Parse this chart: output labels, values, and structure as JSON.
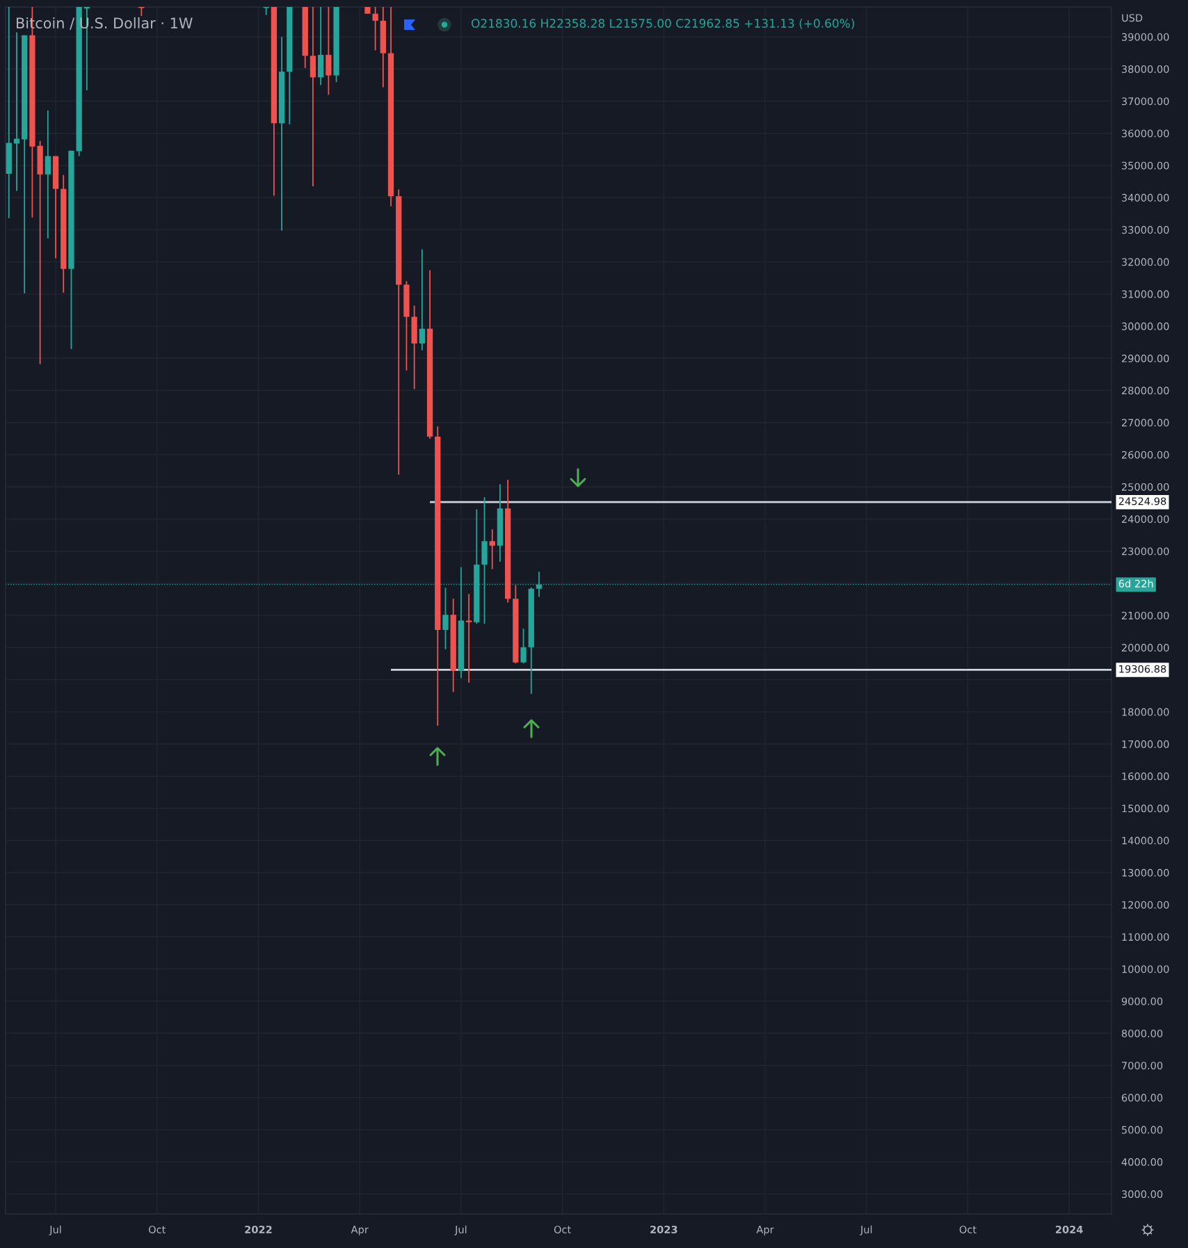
{
  "chart_data": {
    "type": "candlestick",
    "title": "Bitcoin / U.S. Dollar · 1W",
    "subtitle": "O21830.16 H22358.28 L21575.00 C21962.85 +131.13 (+0.60%)",
    "ylabel": "USD",
    "x": [
      "2021-05-24",
      "2021-05-31",
      "2021-06-07",
      "2021-06-14",
      "2021-06-21",
      "2021-06-28",
      "2021-07-05",
      "2021-07-12",
      "2021-07-19",
      "2021-07-26",
      "2021-08-02",
      "2021-09-20",
      "2022-01-10",
      "2022-01-17",
      "2022-01-24",
      "2022-01-31",
      "2022-02-14",
      "2022-02-21",
      "2022-02-28",
      "2022-03-07",
      "2022-03-14",
      "2022-04-11",
      "2022-04-18",
      "2022-04-25",
      "2022-05-02",
      "2022-05-09",
      "2022-05-16",
      "2022-05-23",
      "2022-05-30",
      "2022-06-06",
      "2022-06-13",
      "2022-06-20",
      "2022-06-27",
      "2022-07-04",
      "2022-07-11",
      "2022-07-18",
      "2022-07-25",
      "2022-08-01",
      "2022-08-08",
      "2022-08-15",
      "2022-08-22",
      "2022-08-29",
      "2022-09-05",
      "2022-09-12"
    ],
    "ohlc": [
      [
        34740,
        39930,
        33360,
        35700
      ],
      [
        35680,
        39140,
        34210,
        35830
      ],
      [
        35810,
        39050,
        31020,
        39050
      ],
      [
        39050,
        39930,
        33380,
        35590
      ],
      [
        35610,
        35760,
        28820,
        34720
      ],
      [
        34720,
        36710,
        32730,
        35290
      ],
      [
        35290,
        35290,
        32110,
        34270
      ],
      [
        34270,
        34700,
        31040,
        31780
      ],
      [
        31780,
        35460,
        29290,
        35460
      ],
      [
        35440,
        39930,
        35290,
        39930
      ],
      [
        39880,
        39930,
        37340,
        39930
      ],
      [
        39930,
        39930,
        39650,
        39930
      ],
      [
        39930,
        39930,
        39680,
        39930
      ],
      [
        39930,
        39930,
        34060,
        36310
      ],
      [
        36310,
        39000,
        32970,
        37920
      ],
      [
        37920,
        39930,
        36280,
        39930
      ],
      [
        39930,
        39930,
        38030,
        38410
      ],
      [
        38410,
        39930,
        34350,
        37740
      ],
      [
        37740,
        39930,
        37500,
        38440
      ],
      [
        38440,
        39930,
        37200,
        37800
      ],
      [
        37800,
        39930,
        37590,
        39930
      ],
      [
        39930,
        39930,
        39720,
        39720
      ],
      [
        39720,
        39930,
        38580,
        39500
      ],
      [
        39500,
        39930,
        37430,
        38490
      ],
      [
        38490,
        39930,
        33730,
        34040
      ],
      [
        34040,
        34250,
        25380,
        31290
      ],
      [
        31290,
        31400,
        28620,
        30290
      ],
      [
        30290,
        30640,
        28040,
        29460
      ],
      [
        29460,
        32390,
        29250,
        29920
      ],
      [
        29920,
        31740,
        26500,
        26560
      ],
      [
        26560,
        26880,
        17570,
        20550
      ],
      [
        20550,
        21860,
        19950,
        21020
      ],
      [
        21020,
        21520,
        18620,
        19280
      ],
      [
        19280,
        22500,
        19050,
        20840
      ],
      [
        20840,
        21670,
        18910,
        20790
      ],
      [
        20790,
        24300,
        20740,
        22580
      ],
      [
        22580,
        24680,
        20740,
        23310
      ],
      [
        23310,
        23680,
        22440,
        23170
      ],
      [
        23170,
        25080,
        22670,
        24330
      ],
      [
        24330,
        25220,
        21400,
        21520
      ],
      [
        21520,
        21940,
        19510,
        19540
      ],
      [
        19540,
        20590,
        19510,
        20010
      ],
      [
        20010,
        21870,
        18560,
        21830
      ],
      [
        21830.16,
        22358.28,
        21575.0,
        21962.85
      ]
    ],
    "colors": [
      "#26a69a",
      "#26a69a",
      "#26a69a",
      "#ef5350",
      "#ef5350",
      "#26a69a",
      "#ef5350",
      "#ef5350",
      "#26a69a",
      "#26a69a",
      "#26a69a",
      "#ef5350",
      "#26a69a",
      "#ef5350",
      "#26a69a",
      "#26a69a",
      "#ef5350",
      "#ef5350",
      "#26a69a",
      "#ef5350",
      "#26a69a",
      "#ef5350",
      "#ef5350",
      "#ef5350",
      "#ef5350",
      "#ef5350",
      "#ef5350",
      "#ef5350",
      "#26a69a",
      "#ef5350",
      "#ef5350",
      "#26a69a",
      "#ef5350",
      "#26a69a",
      "#ef5350",
      "#26a69a",
      "#26a69a",
      "#ef5350",
      "#26a69a",
      "#ef5350",
      "#ef5350",
      "#26a69a",
      "#26a69a",
      "#26a69a"
    ],
    "series": [
      {
        "type": "line",
        "x": [
          "2022-06-06",
          "2024-02-08"
        ],
        "values": [
          24524.98,
          24524.98
        ],
        "color": "#d1d4dc",
        "value_labels": [
          null,
          "24524.98"
        ]
      },
      {
        "type": "line",
        "x": [
          "2022-05-02",
          "2024-02-08"
        ],
        "values": [
          19306.88,
          19306.88
        ],
        "color": "#d1d4dc",
        "value_labels": [
          null,
          "19306.88"
        ]
      }
    ],
    "ref_lines": [
      {
        "axis": "y",
        "value": 21962.85,
        "label": "6d 22h",
        "color": "#26a69a",
        "line_style": "dotted"
      }
    ],
    "xlim": [
      "2021-05-21",
      "2024-02-08"
    ],
    "xticks": [
      {
        "value": "2021-07-05",
        "label": "Jul"
      },
      {
        "value": "2021-10-04",
        "label": "Oct"
      },
      {
        "value": "2022-01-03",
        "label": "2022"
      },
      {
        "value": "2022-04-04",
        "label": "Apr"
      },
      {
        "value": "2022-07-04",
        "label": "Jul"
      },
      {
        "value": "2022-10-03",
        "label": "Oct"
      },
      {
        "value": "2023-01-02",
        "label": "2023"
      },
      {
        "value": "2023-04-03",
        "label": "Apr"
      },
      {
        "value": "2023-07-03",
        "label": "Jul"
      },
      {
        "value": "2023-10-02",
        "label": "Oct"
      },
      {
        "value": "2024-01-01",
        "label": "2024"
      }
    ],
    "ylim": [
      2380,
      39930
    ],
    "yticks": [
      {
        "value": 3000,
        "label": "3000.00"
      },
      {
        "value": 4000,
        "label": "4000.00"
      },
      {
        "value": 5000,
        "label": "5000.00"
      },
      {
        "value": 6000,
        "label": "6000.00"
      },
      {
        "value": 7000,
        "label": "7000.00"
      },
      {
        "value": 8000,
        "label": "8000.00"
      },
      {
        "value": 9000,
        "label": "9000.00"
      },
      {
        "value": 10000,
        "label": "10000.00"
      },
      {
        "value": 11000,
        "label": "11000.00"
      },
      {
        "value": 12000,
        "label": "12000.00"
      },
      {
        "value": 13000,
        "label": "13000.00"
      },
      {
        "value": 14000,
        "label": "14000.00"
      },
      {
        "value": 15000,
        "label": "15000.00"
      },
      {
        "value": 16000,
        "label": "16000.00"
      },
      {
        "value": 17000,
        "label": "17000.00"
      },
      {
        "value": 18000,
        "label": "18000.00"
      },
      {
        "value": 19000,
        "label": null
      },
      {
        "value": 20000,
        "label": "20000.00"
      },
      {
        "value": 21000,
        "label": "21000.00"
      },
      {
        "value": 22000,
        "label": null
      },
      {
        "value": 23000,
        "label": "23000.00"
      },
      {
        "value": 24000,
        "label": "24000.00"
      },
      {
        "value": 25000,
        "label": "25000.00"
      },
      {
        "value": 26000,
        "label": "26000.00"
      },
      {
        "value": 27000,
        "label": "27000.00"
      },
      {
        "value": 28000,
        "label": "28000.00"
      },
      {
        "value": 29000,
        "label": "29000.00"
      },
      {
        "value": 30000,
        "label": "30000.00"
      },
      {
        "value": 31000,
        "label": "31000.00"
      },
      {
        "value": 32000,
        "label": "32000.00"
      },
      {
        "value": 33000,
        "label": "33000.00"
      },
      {
        "value": 34000,
        "label": "34000.00"
      },
      {
        "value": 35000,
        "label": "35000.00"
      },
      {
        "value": 36000,
        "label": "36000.00"
      },
      {
        "value": 37000,
        "label": "37000.00"
      },
      {
        "value": 38000,
        "label": "38000.00"
      },
      {
        "value": 39000,
        "label": "39000.00"
      }
    ],
    "grid": true
  }
}
